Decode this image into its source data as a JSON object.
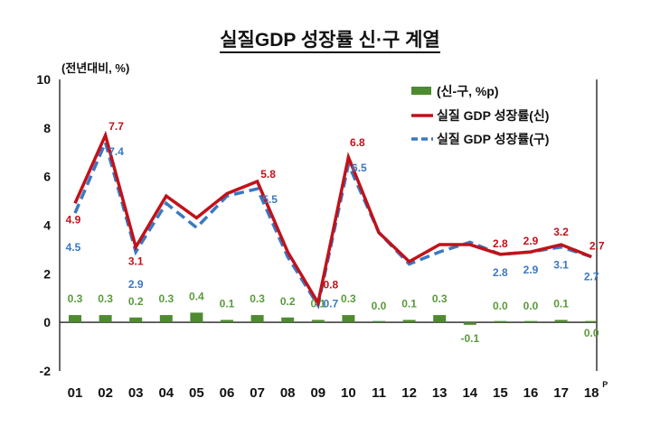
{
  "chart_data": {
    "type": "line",
    "title": "실질GDP 성장률 신·구 계열",
    "unit_label": "(전년대비, %)",
    "categories": [
      "01",
      "02",
      "03",
      "04",
      "05",
      "06",
      "07",
      "08",
      "09",
      "10",
      "11",
      "12",
      "13",
      "14",
      "15",
      "16",
      "17",
      "18"
    ],
    "last_superscript": "P",
    "ylim": [
      -2,
      10
    ],
    "yticks": [
      "-2",
      "0",
      "2",
      "4",
      "6",
      "8",
      "10"
    ],
    "ytick_values": [
      -2,
      0,
      2,
      4,
      6,
      8,
      10
    ],
    "legend_position": "top-right",
    "series": [
      {
        "name": "(신-구, %p)",
        "type": "bar",
        "color": "#4e8a2f",
        "values": [
          0.3,
          0.3,
          0.2,
          0.3,
          0.4,
          0.1,
          0.3,
          0.2,
          0.1,
          0.3,
          0.0,
          0.1,
          0.3,
          -0.1,
          0.0,
          0.0,
          0.1,
          0.0
        ],
        "labels": [
          "0.3",
          "0.3",
          "0.2",
          "0.3",
          "0.4",
          "0.1",
          "0.3",
          "0.2",
          "0.1",
          "0.3",
          "0.0",
          "0.1",
          "0.3",
          "-0.1",
          "0.0",
          "0.0",
          "0.1",
          "0.0"
        ]
      },
      {
        "name": "실질 GDP 성장률(신)",
        "type": "line",
        "color": "#c0121b",
        "values": [
          4.9,
          7.7,
          3.1,
          5.2,
          4.3,
          5.3,
          5.8,
          2.9,
          0.8,
          6.8,
          3.7,
          2.5,
          3.2,
          3.2,
          2.8,
          2.9,
          3.2,
          2.7
        ],
        "labels": {
          "0": "4.9",
          "1": "7.7",
          "2": "3.1",
          "6": "5.8",
          "8": "0.8",
          "9": "6.8",
          "14": "2.8",
          "15": "2.9",
          "16": "3.2",
          "17": "2.7"
        }
      },
      {
        "name": "실질 GDP 성장률(구)",
        "type": "line",
        "dashed": true,
        "color": "#3a78c2",
        "values": [
          4.5,
          7.4,
          2.9,
          4.9,
          3.9,
          5.2,
          5.5,
          2.7,
          0.7,
          6.5,
          3.7,
          2.4,
          2.9,
          3.3,
          2.8,
          2.9,
          3.1,
          2.7
        ],
        "labels": {
          "0": "4.5",
          "1": "7.4",
          "2": "2.9",
          "6": "5.5",
          "8": "0.7",
          "9": "6.5",
          "14": "2.8",
          "15": "2.9",
          "16": "3.1",
          "17": "2.7"
        }
      }
    ]
  }
}
